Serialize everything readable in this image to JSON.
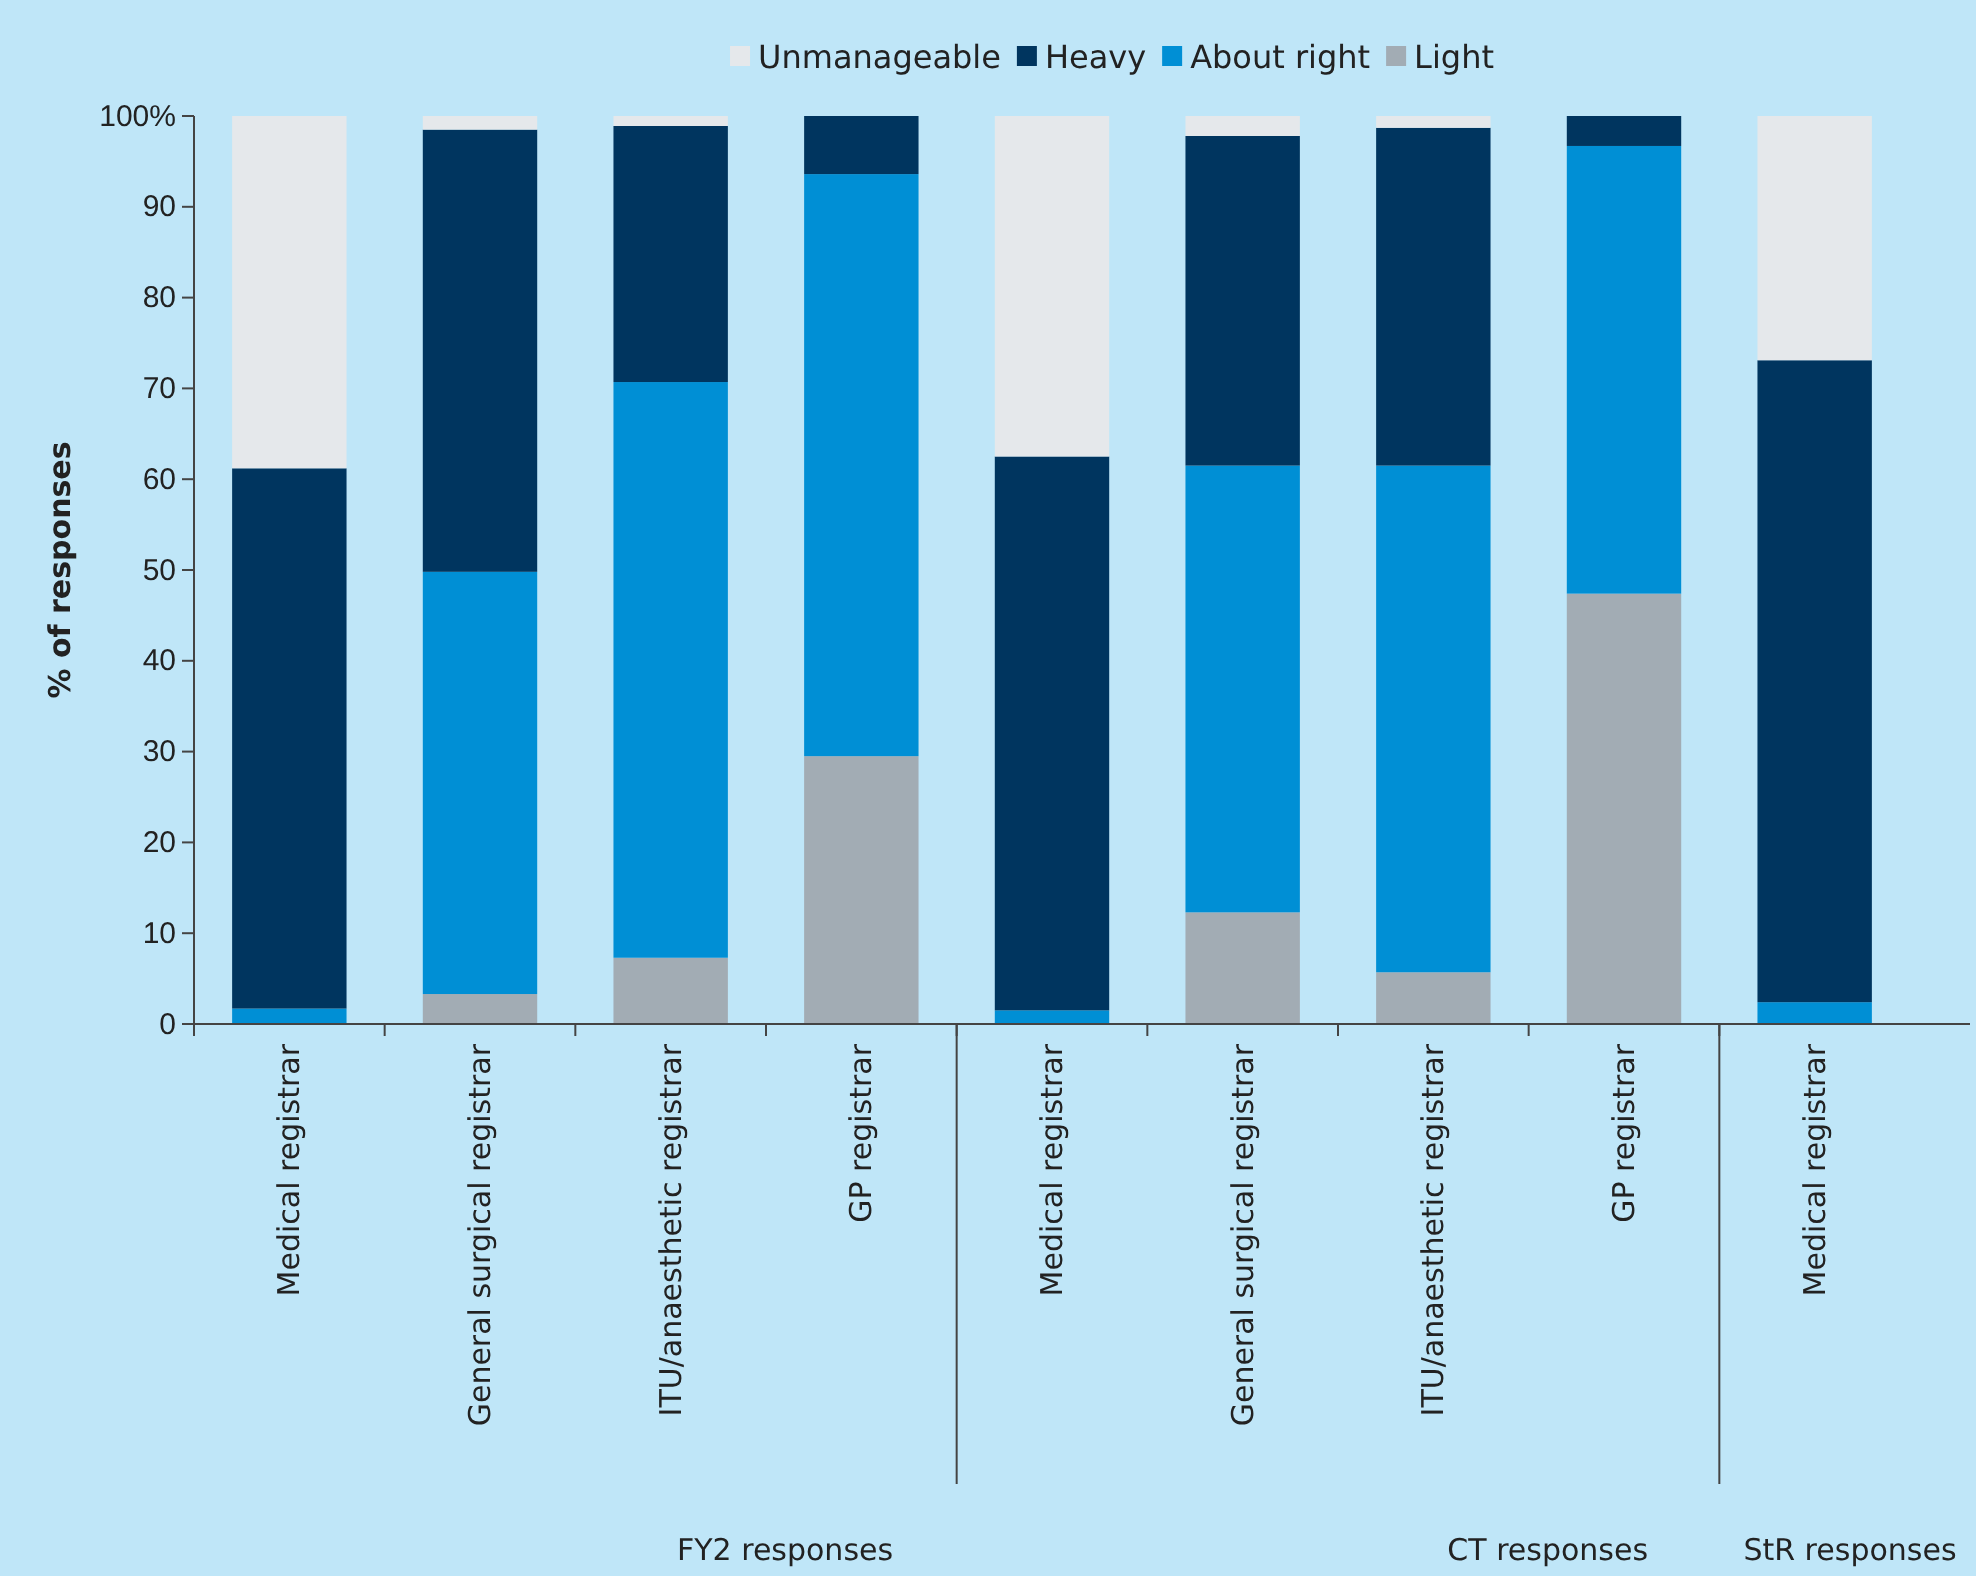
{
  "chart_data": {
    "type": "bar",
    "stacked": true,
    "ylabel": "% of responses",
    "categories": [
      "Medical registrar",
      "General surgical registrar",
      "ITU/anaesthetic registrar",
      "GP registrar",
      "Medical registrar",
      "General surgical registrar",
      "ITU/anaesthetic registrar",
      "GP registrar",
      "Medical registrar"
    ],
    "series": [
      {
        "name": "Light",
        "color": "#a2acb4",
        "values": [
          0,
          3.3,
          7.3,
          29.5,
          0,
          12.3,
          5.7,
          47.4,
          0
        ]
      },
      {
        "name": "About right",
        "color": "#008fd5",
        "values": [
          1.7,
          46.5,
          63.4,
          64.1,
          1.5,
          49.2,
          55.8,
          49.3,
          2.4
        ]
      },
      {
        "name": "Heavy",
        "color": "#00355f",
        "values": [
          59.5,
          48.7,
          28.2,
          6.4,
          61,
          36.3,
          37.2,
          3.3,
          70.7
        ]
      },
      {
        "name": "Unmanageable",
        "color": "#e5e8eb",
        "values": [
          38.8,
          1.5,
          1.1,
          0,
          37.5,
          2.2,
          1.3,
          0,
          26.9
        ]
      }
    ],
    "ylim": [
      0,
      100
    ],
    "yticks": [
      0,
      10,
      20,
      30,
      40,
      50,
      60,
      70,
      80,
      90,
      {
        "value": 100,
        "label": "100%"
      }
    ],
    "legend": "top",
    "annotations": [
      "FY2 responses",
      "CT responses",
      "StR responses"
    ]
  }
}
